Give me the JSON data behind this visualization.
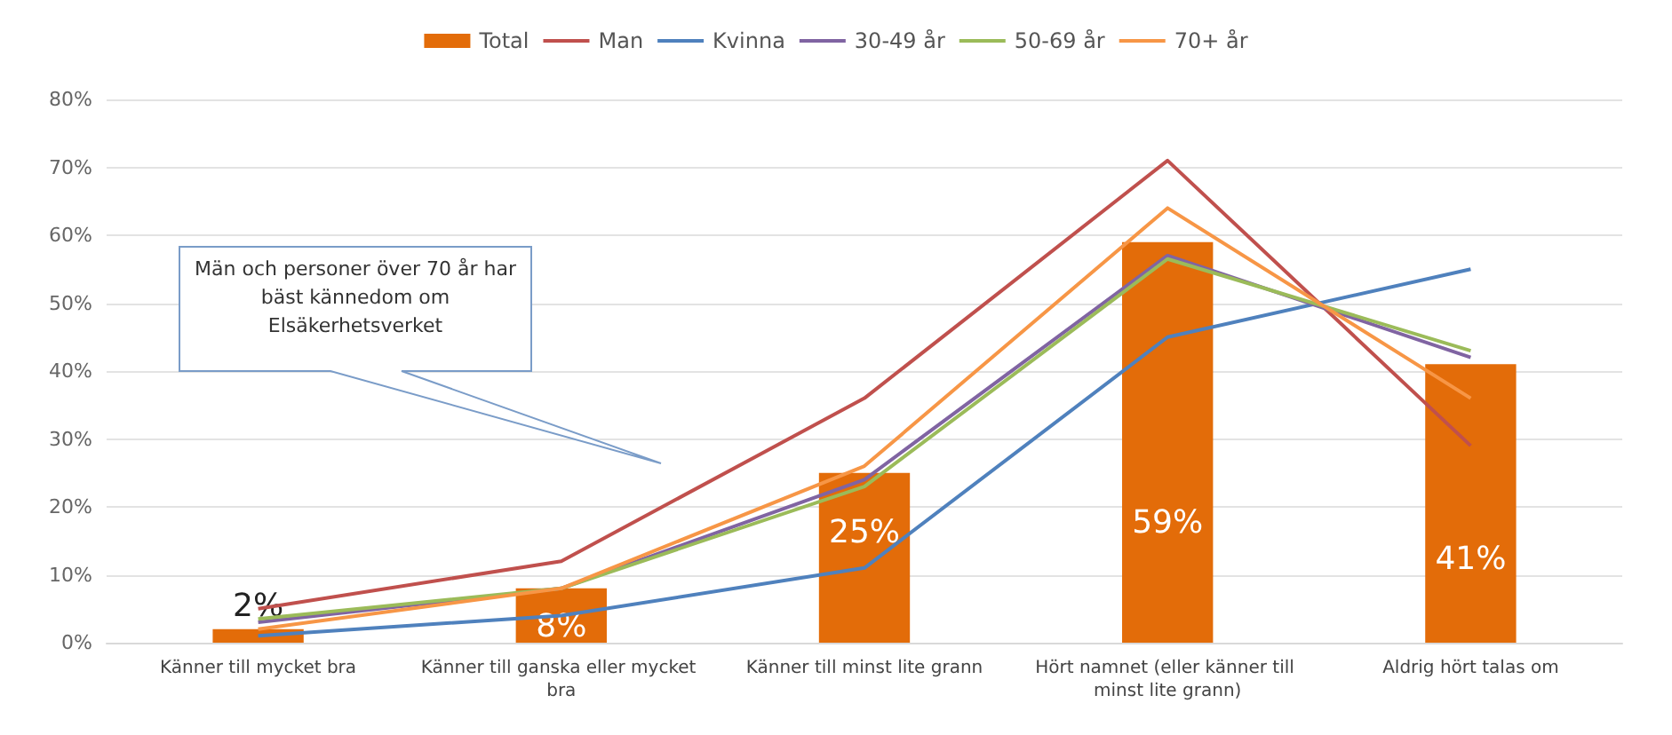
{
  "chart_data": {
    "type": "bar",
    "categories": [
      "Känner till mycket bra",
      "Känner till ganska eller mycket bra",
      "Känner till minst lite grann",
      "Hört namnet (eller känner till minst lite grann)",
      "Aldrig hört talas om"
    ],
    "series": [
      {
        "name": "Total",
        "type": "bar",
        "color": "#e36c09",
        "values": [
          2,
          8,
          25,
          59,
          41
        ],
        "value_labels": [
          "2%",
          "8%",
          "25%",
          "59%",
          "41%"
        ]
      },
      {
        "name": "Man",
        "type": "line",
        "color": "#c0504d",
        "values": [
          5,
          12,
          36,
          71,
          29
        ]
      },
      {
        "name": "Kvinna",
        "type": "line",
        "color": "#4f81bd",
        "values": [
          1,
          4,
          11,
          45,
          55
        ]
      },
      {
        "name": "30-49 år",
        "type": "line",
        "color": "#8064a2",
        "values": [
          3,
          8,
          24,
          57,
          42
        ]
      },
      {
        "name": "50-69 år",
        "type": "line",
        "color": "#9bbb59",
        "values": [
          3.5,
          8,
          23,
          56.5,
          43
        ]
      },
      {
        "name": "70+ år",
        "type": "line",
        "color": "#f79646",
        "values": [
          2,
          8,
          26,
          64,
          36
        ]
      }
    ],
    "ylim": [
      0,
      80
    ],
    "yticks": [
      {
        "value": 0,
        "label": "0%"
      },
      {
        "value": 10,
        "label": "10%"
      },
      {
        "value": 20,
        "label": "20%"
      },
      {
        "value": 30,
        "label": "30%"
      },
      {
        "value": 40,
        "label": "40%"
      },
      {
        "value": 50,
        "label": "50%"
      },
      {
        "value": 60,
        "label": "60%"
      },
      {
        "value": 70,
        "label": "70%"
      },
      {
        "value": 80,
        "label": "80%"
      }
    ],
    "grid": "y",
    "legend": "top",
    "marker": "none",
    "line_style": "solid",
    "annotations": [
      "Män och personer över 70 år har bäst kännedom om Elsäkerhetsverket"
    ]
  }
}
